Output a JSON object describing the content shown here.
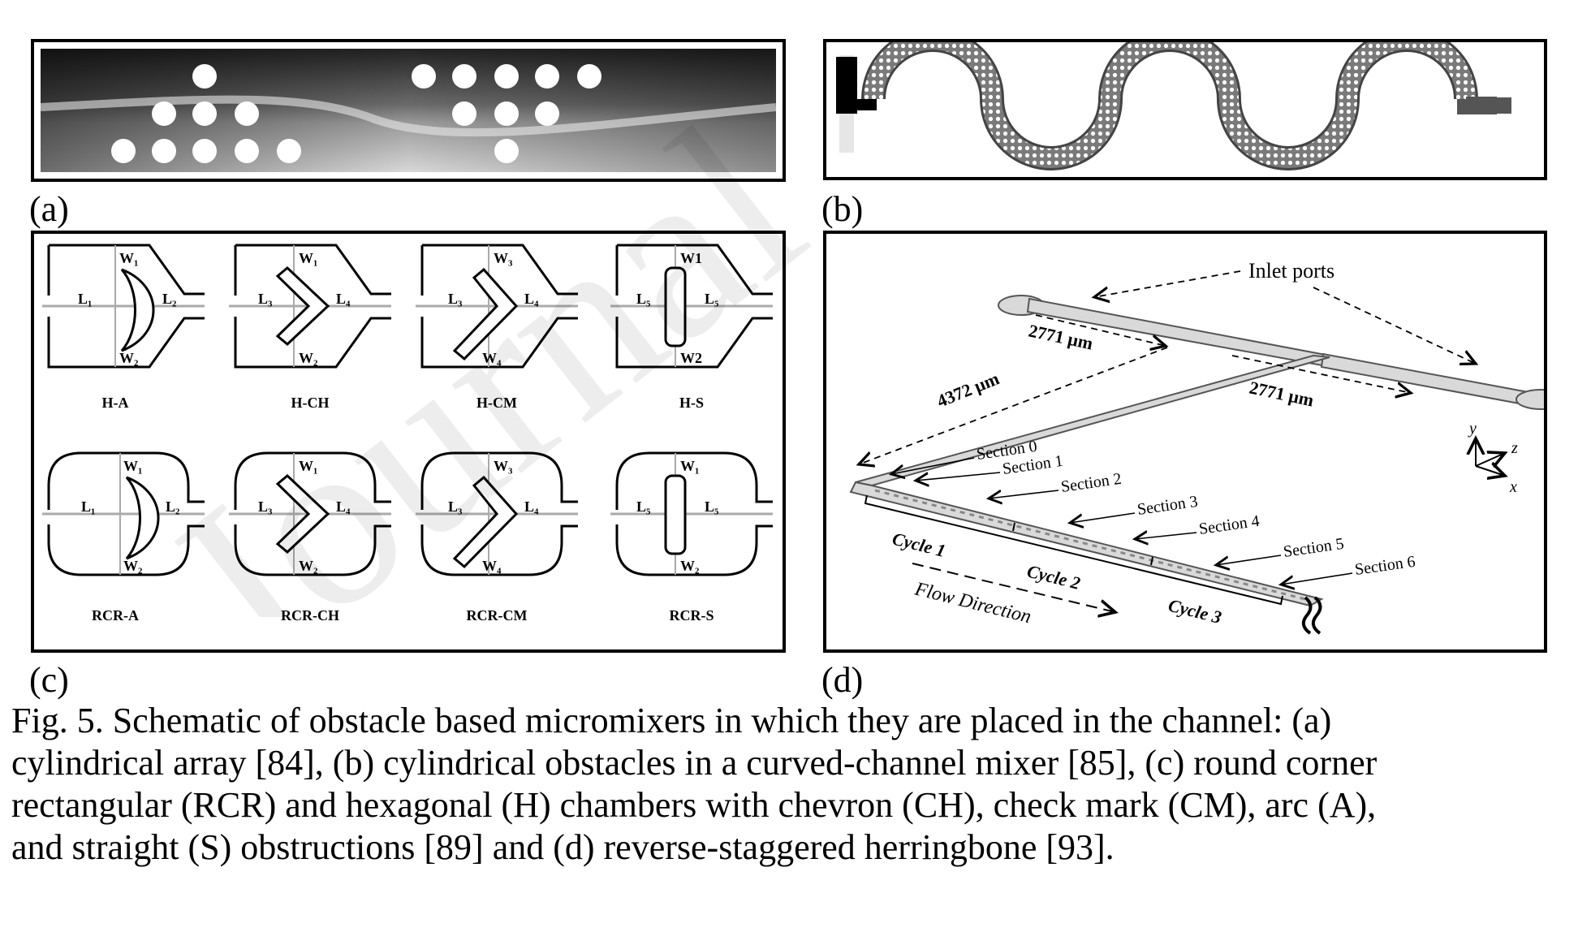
{
  "panels": {
    "a": {
      "label": "(a)"
    },
    "b": {
      "label": "(b)"
    },
    "c": {
      "label": "(c)",
      "top_row": [
        {
          "name": "H-A",
          "w_top": "W₁",
          "w_bot": "W₂",
          "l_left": "L₁",
          "l_right": "L₂"
        },
        {
          "name": "H-CH",
          "w_top": "W₁",
          "w_bot": "W₂",
          "l_left": "L₃",
          "l_right": "L₄"
        },
        {
          "name": "H-CM",
          "w_top": "W₃",
          "w_bot": "W₄",
          "l_left": "L₃",
          "l_right": "L₄"
        },
        {
          "name": "H-S",
          "w_top": "W1",
          "w_bot": "W2",
          "l_left": "L₅",
          "l_right": "L₅"
        }
      ],
      "bottom_row": [
        {
          "name": "RCR-A",
          "w_top": "W₁",
          "w_bot": "W₂",
          "l_left": "L₁",
          "l_right": "L₂"
        },
        {
          "name": "RCR-CH",
          "w_top": "W₁",
          "w_bot": "W₂",
          "l_left": "L₃",
          "l_right": "L₄"
        },
        {
          "name": "RCR-CM",
          "w_top": "W₃",
          "w_bot": "W₄",
          "l_left": "L₃",
          "l_right": "L₄"
        },
        {
          "name": "RCR-S",
          "w_top": "W₁",
          "w_bot": "W₂",
          "l_left": "L₅",
          "l_right": "L₅"
        }
      ]
    },
    "d": {
      "label": "(d)",
      "inlet_ports": "Inlet ports",
      "dim_left_arm": "2771 μm",
      "dim_right_arm": "2771 μm",
      "dim_long": "4372 μm",
      "sections": [
        "Section 0",
        "Section 1",
        "Section 2",
        "Section 3",
        "Section 4",
        "Section 5",
        "Section 6"
      ],
      "cycles": [
        "Cycle 1",
        "Cycle 2",
        "Cycle 3"
      ],
      "flow_direction": "Flow Direction",
      "axes": {
        "y": "y",
        "z": "z",
        "x": "x"
      }
    }
  },
  "caption": {
    "lines": [
      "Fig. 5. Schematic of obstacle based micromixers in which they are placed in the channel:  (a)",
      "cylindrical array [84], (b) cylindrical obstacles in a curved-channel mixer [85], (c) round corner",
      "rectangular (RCR) and hexagonal (H) chambers with chevron (CH), check mark (CM), arc (A),",
      "and straight (S) obstructions [89] and (d) reverse-staggered herringbone [93]."
    ]
  },
  "watermark": "Journal"
}
